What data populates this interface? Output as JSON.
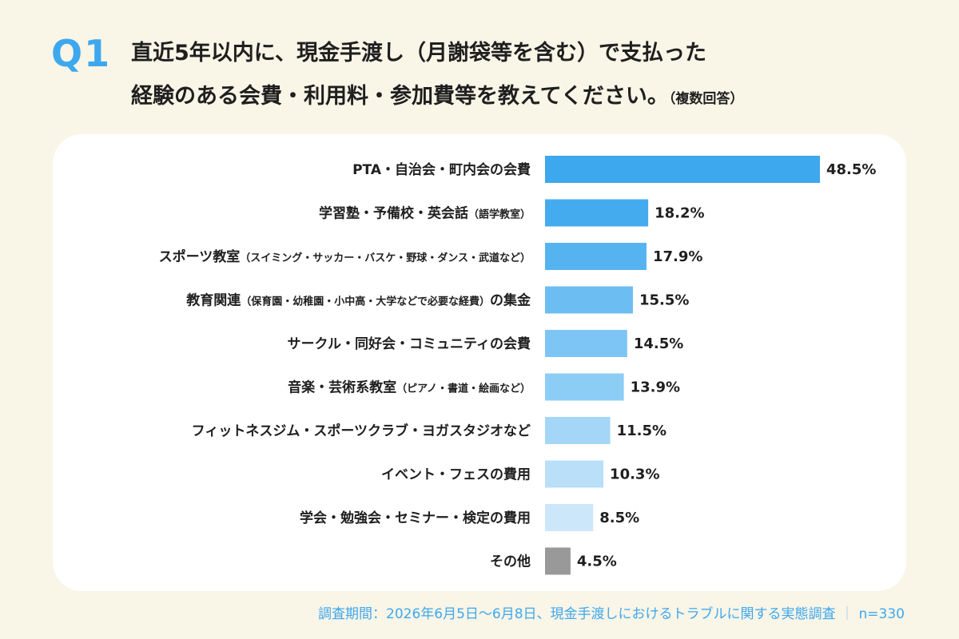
{
  "header": {
    "badge": "Q1",
    "title_line1": "直近5年以内に、現金手渡し（月謝袋等を含む）で支払った",
    "title_line2": "経験のある会費・利用料・参加費等を教えてください。",
    "title_note": "（複数回答）"
  },
  "chart_data": {
    "type": "bar",
    "orientation": "horizontal",
    "categories": [
      "PTA・自治会・町内会の会費",
      "学習塾・予備校・英会話（語学教室）",
      "スポーツ教室（スイミング・サッカー・バスケ・野球・ダンス・武道など）",
      "教育関連（保育園・幼稚園・小中高・大学などで必要な経費）の集金",
      "サークル・同好会・コミュニティの会費",
      "音楽・芸術系教室（ピアノ・書道・絵画など）",
      "フィットネスジム・スポーツクラブ・ヨガスタジオなど",
      "イベント・フェスの費用",
      "学会・勉強会・セミナー・検定の費用",
      "その他"
    ],
    "labels": [
      {
        "main": "PTA・自治会・町内会の会費",
        "note": "",
        "tail": ""
      },
      {
        "main": "学習塾・予備校・英会話",
        "note": "（語学教室）",
        "tail": ""
      },
      {
        "main": "スポーツ教室",
        "note": "（スイミング・サッカー・バスケ・野球・ダンス・武道など）",
        "tail": ""
      },
      {
        "main": "教育関連",
        "note": "（保育園・幼稚園・小中高・大学などで必要な経費）",
        "tail": "の集金"
      },
      {
        "main": "サークル・同好会・コミュニティの会費",
        "note": "",
        "tail": ""
      },
      {
        "main": "音楽・芸術系教室",
        "note": "（ピアノ・書道・絵画など）",
        "tail": ""
      },
      {
        "main": "フィットネスジム・スポーツクラブ・ヨガスタジオなど",
        "note": "",
        "tail": ""
      },
      {
        "main": "イベント・フェスの費用",
        "note": "",
        "tail": ""
      },
      {
        "main": "学会・勉強会・セミナー・検定の費用",
        "note": "",
        "tail": ""
      },
      {
        "main": "その他",
        "note": "",
        "tail": ""
      }
    ],
    "values": [
      48.5,
      18.2,
      17.9,
      15.5,
      14.5,
      13.9,
      11.5,
      10.3,
      8.5,
      4.5
    ],
    "value_labels": [
      "48.5%",
      "18.2%",
      "17.9%",
      "15.5%",
      "14.5%",
      "13.9%",
      "11.5%",
      "10.3%",
      "8.5%",
      "4.5%"
    ],
    "unit": "%",
    "colors": [
      "#3ea8ee",
      "#45abef",
      "#55b3f0",
      "#6cbdf2",
      "#7cc5f4",
      "#8ccdf5",
      "#a4d6f7",
      "#b9dff9",
      "#cde7fa",
      "#999999"
    ],
    "xlim": [
      0,
      48.5
    ],
    "grid": false,
    "legend": "none"
  },
  "footer": {
    "source": "調査期間：2026年6月5日～6月8日、現金手渡しにおけるトラブルに関する実態調査",
    "separator": "｜",
    "sample": "n=330"
  }
}
